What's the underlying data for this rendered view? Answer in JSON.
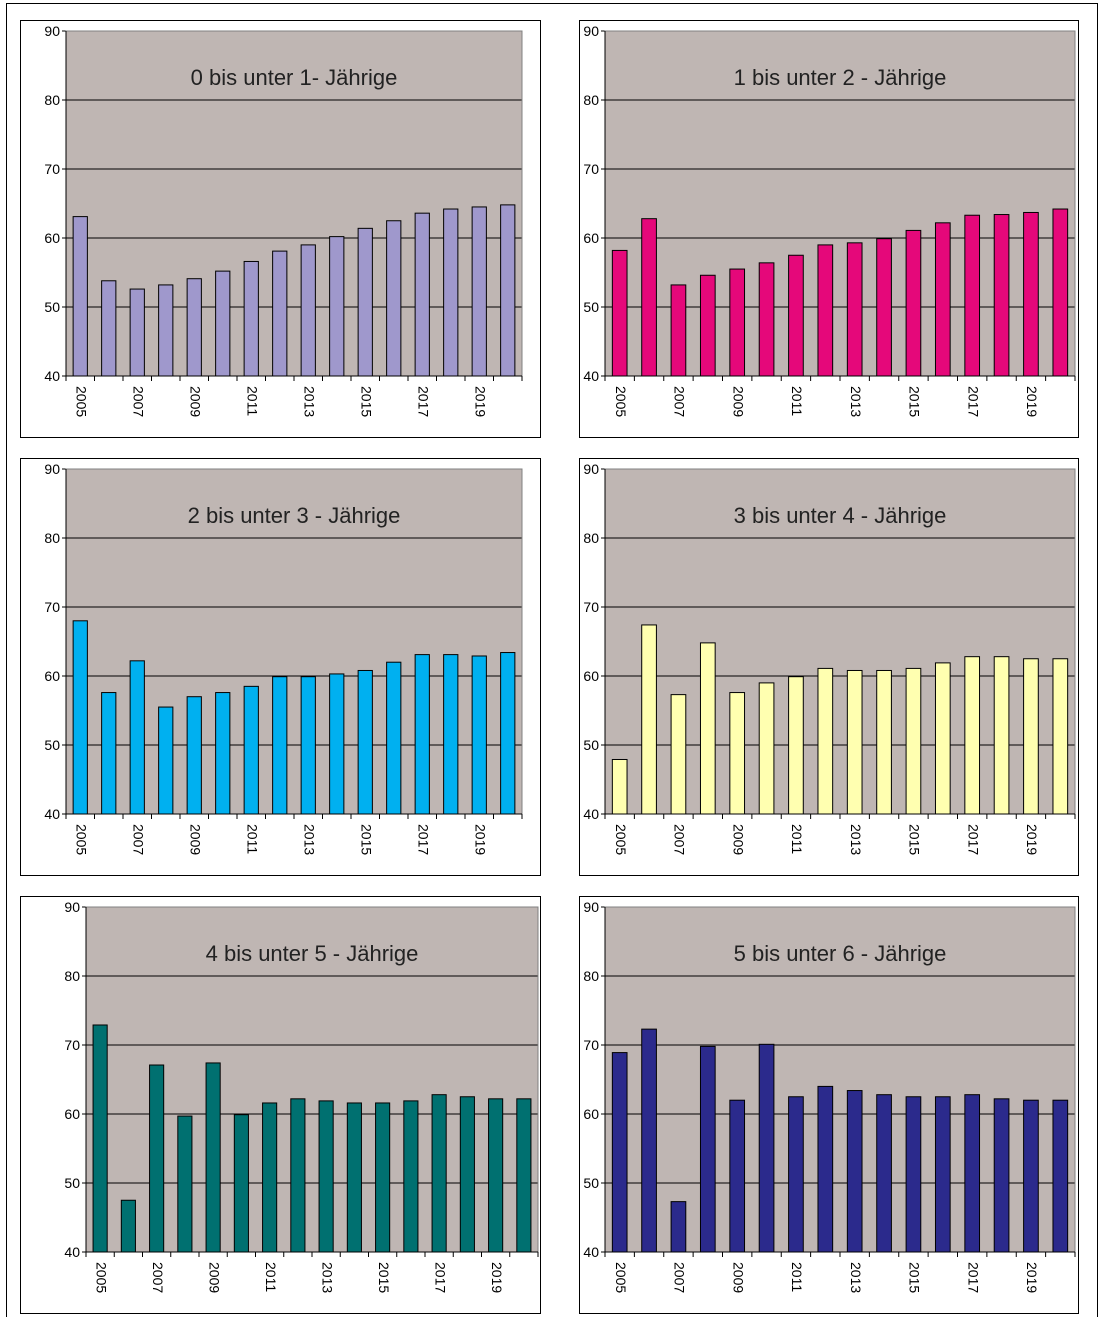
{
  "chart_data": [
    {
      "type": "bar",
      "title": "0 bis unter 1- Jährige",
      "categories": [
        "2005",
        "2006",
        "2007",
        "2008",
        "2009",
        "2010",
        "2011",
        "2012",
        "2013",
        "2014",
        "2015",
        "2016",
        "2017",
        "2018",
        "2019",
        "2020"
      ],
      "tick_labels": [
        "2005",
        "2007",
        "2009",
        "2011",
        "2013",
        "2015",
        "2017",
        "2019"
      ],
      "values": [
        63.1,
        53.8,
        52.6,
        53.2,
        54.1,
        55.2,
        56.6,
        58.1,
        59.0,
        60.2,
        61.4,
        62.5,
        63.6,
        64.2,
        64.5,
        64.8
      ],
      "ylim": [
        40,
        90
      ],
      "yticks": [
        "40",
        "50",
        "60",
        "70",
        "80",
        "90"
      ],
      "grid": true,
      "legend": "none",
      "bar_color": "#9f98cc",
      "plot_bg": "#bfb6b3"
    },
    {
      "type": "bar",
      "title": "1 bis unter 2 - Jährige",
      "categories": [
        "2005",
        "2006",
        "2007",
        "2008",
        "2009",
        "2010",
        "2011",
        "2012",
        "2013",
        "2014",
        "2015",
        "2016",
        "2017",
        "2018",
        "2019",
        "2020"
      ],
      "tick_labels": [
        "2005",
        "2007",
        "2009",
        "2011",
        "2013",
        "2015",
        "2017",
        "2019"
      ],
      "values": [
        58.2,
        62.8,
        53.2,
        54.6,
        55.5,
        56.4,
        57.5,
        59.0,
        59.3,
        59.9,
        61.1,
        62.2,
        63.3,
        63.4,
        63.7,
        64.2
      ],
      "ylim": [
        40,
        90
      ],
      "yticks": [
        "40",
        "50",
        "60",
        "70",
        "80",
        "90"
      ],
      "grid": true,
      "legend": "none",
      "bar_color": "#e5087a",
      "plot_bg": "#bfb6b3"
    },
    {
      "type": "bar",
      "title": "2 bis unter 3 - Jährige",
      "categories": [
        "2005",
        "2006",
        "2007",
        "2008",
        "2009",
        "2010",
        "2011",
        "2012",
        "2013",
        "2014",
        "2015",
        "2016",
        "2017",
        "2018",
        "2019",
        "2020"
      ],
      "tick_labels": [
        "2005",
        "2007",
        "2009",
        "2011",
        "2013",
        "2015",
        "2017",
        "2019"
      ],
      "values": [
        68.0,
        57.6,
        62.2,
        55.5,
        57.0,
        57.6,
        58.5,
        59.9,
        59.9,
        60.3,
        60.8,
        62.0,
        63.1,
        63.1,
        62.9,
        63.4
      ],
      "ylim": [
        40,
        90
      ],
      "yticks": [
        "40",
        "50",
        "60",
        "70",
        "80",
        "90"
      ],
      "grid": true,
      "legend": "none",
      "bar_color": "#00b0f0",
      "plot_bg": "#bfb6b3"
    },
    {
      "type": "bar",
      "title": "3 bis unter 4 - Jährige",
      "categories": [
        "2005",
        "2006",
        "2007",
        "2008",
        "2009",
        "2010",
        "2011",
        "2012",
        "2013",
        "2014",
        "2015",
        "2016",
        "2017",
        "2018",
        "2019",
        "2020"
      ],
      "tick_labels": [
        "2005",
        "2007",
        "2009",
        "2011",
        "2013",
        "2015",
        "2017",
        "2019"
      ],
      "values": [
        47.9,
        67.4,
        57.3,
        64.8,
        57.6,
        59.0,
        59.9,
        61.1,
        60.8,
        60.8,
        61.1,
        61.9,
        62.8,
        62.8,
        62.5,
        62.5
      ],
      "ylim": [
        40,
        90
      ],
      "yticks": [
        "40",
        "50",
        "60",
        "70",
        "80",
        "90"
      ],
      "grid": true,
      "legend": "none",
      "bar_color": "#ffffb0",
      "plot_bg": "#bfb6b3"
    },
    {
      "type": "bar",
      "title": "4 bis unter 5 - Jährige",
      "categories": [
        "2005",
        "2006",
        "2007",
        "2008",
        "2009",
        "2010",
        "2011",
        "2012",
        "2013",
        "2014",
        "2015",
        "2016",
        "2017",
        "2018",
        "2019",
        "2020"
      ],
      "tick_labels": [
        "2005",
        "2007",
        "2009",
        "2011",
        "2013",
        "2015",
        "2017",
        "2019"
      ],
      "values": [
        72.9,
        47.5,
        67.1,
        59.7,
        67.4,
        59.9,
        61.6,
        62.2,
        61.9,
        61.6,
        61.6,
        61.9,
        62.8,
        62.5,
        62.2,
        62.2
      ],
      "ylim": [
        40,
        90
      ],
      "yticks": [
        "40",
        "50",
        "60",
        "70",
        "80",
        "90"
      ],
      "grid": true,
      "legend": "none",
      "bar_color": "#007070",
      "plot_bg": "#bfb6b3"
    },
    {
      "type": "bar",
      "title": "5 bis unter 6 - Jährige",
      "categories": [
        "2005",
        "2006",
        "2007",
        "2008",
        "2009",
        "2010",
        "2011",
        "2012",
        "2013",
        "2014",
        "2015",
        "2016",
        "2017",
        "2018",
        "2019",
        "2020"
      ],
      "tick_labels": [
        "2005",
        "2007",
        "2009",
        "2011",
        "2013",
        "2015",
        "2017",
        "2019"
      ],
      "values": [
        68.9,
        72.3,
        47.3,
        69.8,
        62.0,
        70.1,
        62.5,
        64.0,
        63.4,
        62.8,
        62.5,
        62.5,
        62.8,
        62.2,
        62.0,
        62.0
      ],
      "ylim": [
        40,
        90
      ],
      "yticks": [
        "40",
        "50",
        "60",
        "70",
        "80",
        "90"
      ],
      "grid": true,
      "legend": "none",
      "bar_color": "#2b2a8c",
      "plot_bg": "#bfb6b3"
    }
  ]
}
